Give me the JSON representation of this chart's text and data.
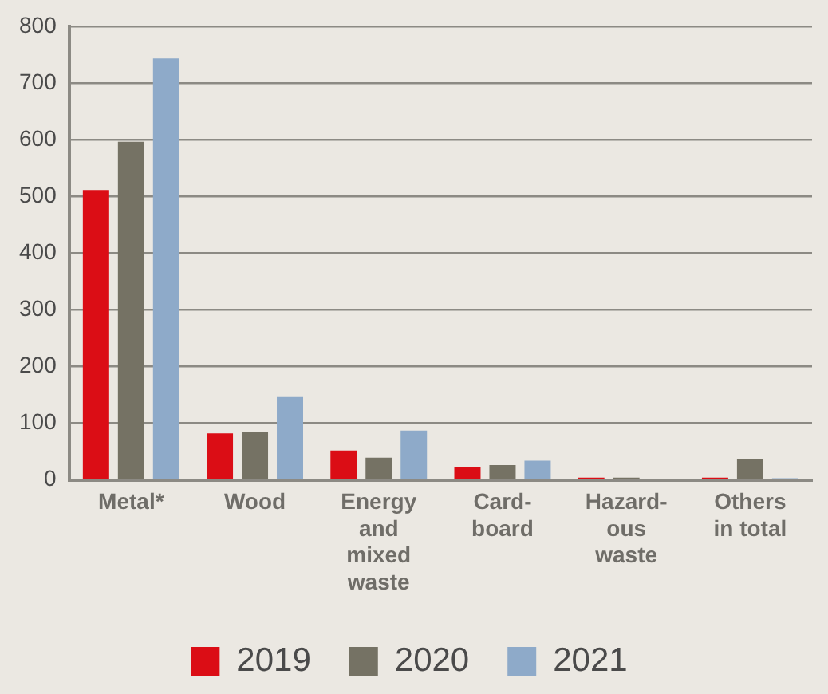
{
  "chart_data": {
    "type": "bar",
    "categories": [
      "Metal*",
      "Wood",
      "Energy\nand\nmixed\nwaste",
      "Card-\nboard",
      "Hazard-\nous\nwaste",
      "Others\nin total"
    ],
    "series": [
      {
        "name": "2019",
        "color": "#db0d15",
        "values": [
          511,
          82,
          52,
          23,
          4,
          4
        ]
      },
      {
        "name": "2020",
        "color": "#757264",
        "values": [
          596,
          85,
          39,
          26,
          4,
          37
        ]
      },
      {
        "name": "2021",
        "color": "#8eaac9",
        "values": [
          743,
          146,
          87,
          34,
          0,
          3
        ]
      }
    ],
    "ylim": [
      0,
      800
    ],
    "yticks": [
      0,
      100,
      200,
      300,
      400,
      500,
      600,
      700,
      800
    ],
    "grid": "y",
    "legend": "bottom"
  }
}
